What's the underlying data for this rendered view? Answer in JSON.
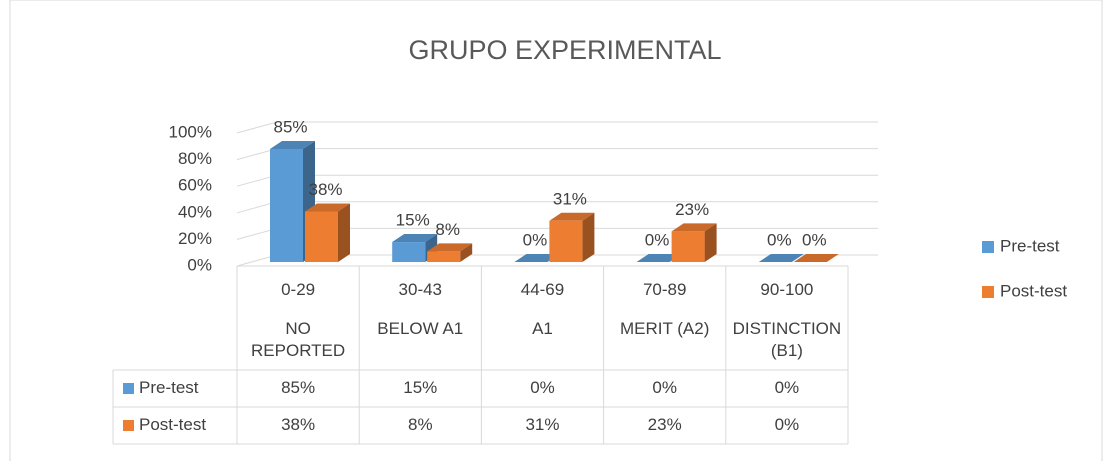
{
  "chart_data": {
    "type": "bar3d",
    "title": "GRUPO EXPERIMENTAL",
    "categories": [
      [
        "0-29",
        "NO REPORTED"
      ],
      [
        "30-43",
        "BELOW A1"
      ],
      [
        "44-69",
        "A1"
      ],
      [
        "70-89",
        "MERIT (A2)"
      ],
      [
        "90-100",
        "DISTINCTION (B1)"
      ]
    ],
    "series": [
      {
        "name": "Pre-test",
        "color": "#5b9bd5",
        "values": [
          85,
          15,
          0,
          0,
          0
        ],
        "value_labels": [
          "85%",
          "15%",
          "0%",
          "0%",
          "0%"
        ]
      },
      {
        "name": "Post-test",
        "color": "#ed7d31",
        "values": [
          38,
          8,
          31,
          23,
          0
        ],
        "value_labels": [
          "38%",
          "8%",
          "31%",
          "23%",
          "0%"
        ]
      }
    ],
    "ylim": [
      0,
      100
    ],
    "yticks": [
      {
        "value": 0,
        "label": "0%"
      },
      {
        "value": 20,
        "label": "20%"
      },
      {
        "value": 40,
        "label": "40%"
      },
      {
        "value": 60,
        "label": "60%"
      },
      {
        "value": 80,
        "label": "80%"
      },
      {
        "value": 100,
        "label": "100%"
      }
    ],
    "grid": true,
    "legend": "right",
    "data_table": true
  }
}
